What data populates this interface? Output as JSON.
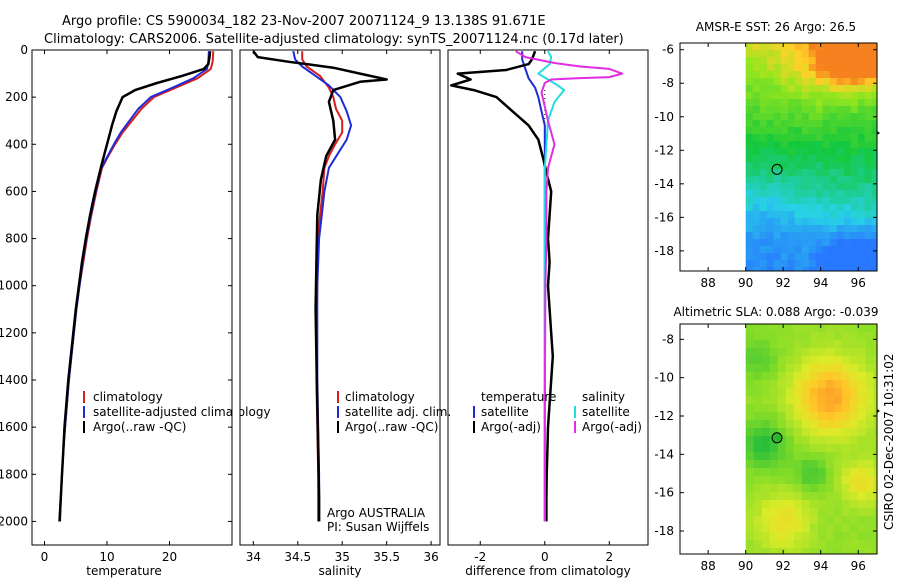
{
  "title_line1": "Argo profile: CS 5900034_182 23-Nov-2007 20071124_9 13.138S 91.671E",
  "title_line2": "Climatology: CARS2006. Satellite-adjusted climatology: synTS_20071124.nc (0.17d later)",
  "colors": {
    "climatology": "#d81e1e",
    "satellite_adjusted": "#1f2bd6",
    "argo": "#000000",
    "salinity_satellite": "#22dede",
    "salinity_argo": "#e22ee2"
  },
  "chart_data": [
    {
      "type": "line",
      "xlabel": "temperature",
      "ylabel": "",
      "xlim": [
        -2,
        30
      ],
      "ylim": [
        2100,
        0
      ],
      "xticks": [
        0,
        10,
        20
      ],
      "yticks": [
        0,
        200,
        400,
        600,
        800,
        1000,
        1200,
        1400,
        1600,
        1800,
        2000
      ],
      "legend": [
        "climatology",
        "satellite-adjusted climatology",
        "Argo(..raw -QC)"
      ],
      "series": [
        {
          "name": "climatology",
          "color_key": "climatology",
          "points": [
            [
              27.0,
              5
            ],
            [
              26.9,
              50
            ],
            [
              26.6,
              80
            ],
            [
              24.5,
              120
            ],
            [
              21,
              160
            ],
            [
              17.5,
              200
            ],
            [
              15.5,
              250
            ],
            [
              14,
              300
            ],
            [
              12.5,
              350
            ],
            [
              11.3,
              400
            ],
            [
              10.2,
              450
            ],
            [
              9.2,
              500
            ],
            [
              8.3,
              600
            ],
            [
              7.5,
              700
            ],
            [
              6.8,
              800
            ],
            [
              6.2,
              900
            ],
            [
              5.6,
              1000
            ],
            [
              5.1,
              1100
            ],
            [
              4.7,
              1200
            ],
            [
              4.3,
              1300
            ],
            [
              3.9,
              1400
            ],
            [
              3.6,
              1500
            ],
            [
              3.3,
              1600
            ],
            [
              3.0,
              1700
            ],
            [
              2.8,
              1800
            ],
            [
              2.6,
              1900
            ],
            [
              2.5,
              2000
            ]
          ]
        },
        {
          "name": "satellite-adjusted climatology",
          "color_key": "satellite_adjusted",
          "points": [
            [
              26.3,
              5
            ],
            [
              26.2,
              50
            ],
            [
              26.0,
              80
            ],
            [
              23.8,
              120
            ],
            [
              20.5,
              160
            ],
            [
              17.0,
              200
            ],
            [
              15.0,
              250
            ],
            [
              13.6,
              300
            ],
            [
              12.2,
              350
            ],
            [
              11.1,
              400
            ],
            [
              10.1,
              450
            ],
            [
              9.1,
              500
            ],
            [
              8.2,
              600
            ],
            [
              7.4,
              700
            ],
            [
              6.7,
              800
            ],
            [
              6.1,
              900
            ],
            [
              5.6,
              1000
            ],
            [
              5.1,
              1100
            ],
            [
              4.7,
              1200
            ],
            [
              4.3,
              1300
            ],
            [
              3.9,
              1400
            ],
            [
              3.6,
              1500
            ],
            [
              3.3,
              1600
            ],
            [
              3.0,
              1700
            ],
            [
              2.8,
              1800
            ],
            [
              2.6,
              1900
            ],
            [
              2.4,
              2000
            ]
          ]
        },
        {
          "name": "Argo(..raw -QC)",
          "color_key": "argo",
          "points": [
            [
              26.5,
              5
            ],
            [
              26.4,
              30
            ],
            [
              26.2,
              60
            ],
            [
              25.5,
              80
            ],
            [
              22,
              110
            ],
            [
              18,
              140
            ],
            [
              14.5,
              170
            ],
            [
              12.5,
              200
            ],
            [
              11.5,
              260
            ],
            [
              10.8,
              320
            ],
            [
              10.2,
              380
            ],
            [
              9.6,
              440
            ],
            [
              9.0,
              500
            ],
            [
              8.1,
              600
            ],
            [
              7.3,
              700
            ],
            [
              6.6,
              800
            ],
            [
              6.0,
              900
            ],
            [
              5.5,
              1000
            ],
            [
              5.0,
              1100
            ],
            [
              4.6,
              1200
            ],
            [
              4.2,
              1300
            ],
            [
              3.8,
              1400
            ],
            [
              3.5,
              1500
            ],
            [
              3.2,
              1600
            ],
            [
              3.0,
              1700
            ],
            [
              2.8,
              1800
            ],
            [
              2.6,
              1900
            ],
            [
              2.4,
              2000
            ]
          ]
        }
      ]
    },
    {
      "type": "line",
      "xlabel": "salinity",
      "ylabel": "",
      "xlim": [
        33.85,
        36.1
      ],
      "ylim": [
        2100,
        0
      ],
      "xticks": [
        34,
        34.5,
        35,
        35.5,
        36
      ],
      "yticks": [],
      "legend": [
        "climatology",
        "satellite adj. clim.",
        "Argo(..raw -QC)"
      ],
      "annotations": [
        "Argo AUSTRALIA",
        "PI: Susan Wijffels"
      ],
      "series": [
        {
          "name": "climatology",
          "color_key": "climatology",
          "points": [
            [
              34.55,
              5
            ],
            [
              34.55,
              40
            ],
            [
              34.6,
              70
            ],
            [
              34.75,
              110
            ],
            [
              34.85,
              160
            ],
            [
              34.9,
              200
            ],
            [
              34.93,
              250
            ],
            [
              35.0,
              300
            ],
            [
              35.0,
              350
            ],
            [
              34.92,
              400
            ],
            [
              34.85,
              450
            ],
            [
              34.8,
              500
            ],
            [
              34.78,
              600
            ],
            [
              34.75,
              700
            ],
            [
              34.73,
              800
            ],
            [
              34.72,
              900
            ],
            [
              34.72,
              1000
            ],
            [
              34.71,
              1200
            ],
            [
              34.71,
              1400
            ],
            [
              34.72,
              1600
            ],
            [
              34.73,
              1800
            ],
            [
              34.73,
              2000
            ]
          ]
        },
        {
          "name": "satellite adj. clim.",
          "color_key": "satellite_adjusted",
          "points": [
            [
              34.45,
              5
            ],
            [
              34.47,
              40
            ],
            [
              34.55,
              70
            ],
            [
              34.7,
              110
            ],
            [
              34.85,
              150
            ],
            [
              34.98,
              200
            ],
            [
              35.05,
              260
            ],
            [
              35.1,
              320
            ],
            [
              35.05,
              380
            ],
            [
              34.95,
              440
            ],
            [
              34.85,
              500
            ],
            [
              34.8,
              600
            ],
            [
              34.77,
              700
            ],
            [
              34.74,
              800
            ],
            [
              34.73,
              900
            ],
            [
              34.72,
              1000
            ],
            [
              34.72,
              1200
            ],
            [
              34.72,
              1400
            ],
            [
              34.73,
              1600
            ],
            [
              34.74,
              1800
            ],
            [
              34.74,
              2000
            ]
          ]
        },
        {
          "name": "Argo(..raw -QC)",
          "color_key": "argo",
          "points": [
            [
              34.0,
              5
            ],
            [
              34.05,
              30
            ],
            [
              34.4,
              50
            ],
            [
              34.6,
              60
            ],
            [
              34.9,
              75
            ],
            [
              35.2,
              100
            ],
            [
              35.5,
              125
            ],
            [
              35.2,
              135
            ],
            [
              34.9,
              170
            ],
            [
              34.85,
              220
            ],
            [
              34.9,
              300
            ],
            [
              34.92,
              380
            ],
            [
              34.82,
              450
            ],
            [
              34.76,
              550
            ],
            [
              34.72,
              700
            ],
            [
              34.71,
              900
            ],
            [
              34.7,
              1100
            ],
            [
              34.71,
              1300
            ],
            [
              34.72,
              1500
            ],
            [
              34.73,
              1700
            ],
            [
              34.74,
              1900
            ],
            [
              34.74,
              2000
            ]
          ]
        }
      ]
    },
    {
      "type": "line",
      "xlabel": "difference from climatology",
      "ylabel": "",
      "xlim": [
        -3,
        3.2
      ],
      "ylim": [
        2100,
        0
      ],
      "xticks": [
        -2,
        0,
        2
      ],
      "yticks": [],
      "legend_groups": [
        {
          "title": "temperature",
          "entries": [
            "satellite",
            "Argo(-adj)"
          ]
        },
        {
          "title": "salinity",
          "entries": [
            "satellite",
            "Argo(-adj)"
          ]
        }
      ],
      "series": [
        {
          "name": "temperature satellite",
          "color_key": "satellite_adjusted",
          "points": [
            [
              -0.7,
              5
            ],
            [
              -0.7,
              40
            ],
            [
              -0.6,
              80
            ],
            [
              -0.5,
              120
            ],
            [
              -0.3,
              160
            ],
            [
              -0.2,
              200
            ],
            [
              -0.1,
              260
            ],
            [
              0,
              320
            ],
            [
              0,
              400
            ],
            [
              0,
              500
            ],
            [
              0,
              700
            ],
            [
              0,
              1000
            ],
            [
              0,
              1500
            ],
            [
              0,
              2000
            ]
          ]
        },
        {
          "name": "temperature Argo(-adj)",
          "color_key": "argo",
          "points": [
            [
              -0.3,
              5
            ],
            [
              -0.4,
              40
            ],
            [
              -0.5,
              60
            ],
            [
              -1.2,
              85
            ],
            [
              -2.7,
              100
            ],
            [
              -2.3,
              125
            ],
            [
              -2.9,
              150
            ],
            [
              -2.2,
              170
            ],
            [
              -1.5,
              200
            ],
            [
              -1.0,
              260
            ],
            [
              -0.5,
              320
            ],
            [
              -0.2,
              380
            ],
            [
              -0.05,
              460
            ],
            [
              0.05,
              520
            ],
            [
              0.2,
              600
            ],
            [
              0.15,
              700
            ],
            [
              0.1,
              800
            ],
            [
              0.15,
              900
            ],
            [
              0.1,
              1000
            ],
            [
              0.15,
              1100
            ],
            [
              0.2,
              1200
            ],
            [
              0.25,
              1300
            ],
            [
              0.2,
              1400
            ],
            [
              0.15,
              1500
            ],
            [
              0.1,
              1600
            ],
            [
              0.08,
              1700
            ],
            [
              0.06,
              1800
            ],
            [
              0.05,
              1900
            ],
            [
              0.05,
              2000
            ]
          ]
        },
        {
          "name": "salinity satellite",
          "color_key": "salinity_satellite",
          "points": [
            [
              0.1,
              5
            ],
            [
              0.2,
              30
            ],
            [
              0.15,
              60
            ],
            [
              -0.2,
              100
            ],
            [
              0.4,
              150
            ],
            [
              0.6,
              170
            ],
            [
              0.3,
              220
            ],
            [
              0.1,
              300
            ],
            [
              0.05,
              400
            ],
            [
              0,
              500
            ],
            [
              0,
              700
            ],
            [
              0,
              1000
            ],
            [
              0,
              1500
            ],
            [
              0,
              2000
            ]
          ]
        },
        {
          "name": "salinity Argo(-adj)",
          "color_key": "salinity_argo",
          "points": [
            [
              -0.9,
              5
            ],
            [
              -0.6,
              30
            ],
            [
              0.3,
              55
            ],
            [
              1.1,
              70
            ],
            [
              2.0,
              80
            ],
            [
              2.4,
              100
            ],
            [
              2.0,
              115
            ],
            [
              1.0,
              120
            ],
            [
              0.2,
              125
            ],
            [
              0,
              140
            ],
            [
              -0.1,
              180
            ],
            [
              0,
              240
            ],
            [
              0.1,
              300
            ],
            [
              0.2,
              350
            ],
            [
              0.3,
              400
            ],
            [
              0.1,
              500
            ],
            [
              0.05,
              600
            ],
            [
              0.05,
              800
            ],
            [
              0.02,
              1000
            ],
            [
              0,
              1500
            ],
            [
              0,
              2000
            ]
          ]
        }
      ]
    },
    {
      "type": "heatmap",
      "title": "AMSR-E SST: 26 Argo: 26.5",
      "xlim": [
        86.5,
        97
      ],
      "ylim": [
        -19.2,
        -5.6
      ],
      "xticks": [
        88,
        90,
        92,
        94,
        96
      ],
      "yticks": [
        -6,
        -8,
        -10,
        -12,
        -14,
        -16,
        -18
      ],
      "data_xrange": [
        90,
        97
      ],
      "marker": {
        "lon": 91.671,
        "lat": -13.138
      }
    },
    {
      "type": "heatmap",
      "title": "Altimetric SLA: 0.088 Argo: -0.039",
      "xlim": [
        86.5,
        97
      ],
      "ylim": [
        -19.2,
        -7.2
      ],
      "xticks": [
        88,
        90,
        92,
        94,
        96
      ],
      "yticks": [
        -8,
        -10,
        -12,
        -14,
        -16,
        -18
      ],
      "data_xrange": [
        90,
        97
      ],
      "marker": {
        "lon": 91.671,
        "lat": -13.138
      }
    }
  ],
  "footer_stamp": "CSIRO 02-Dec-2007 10:31:02"
}
